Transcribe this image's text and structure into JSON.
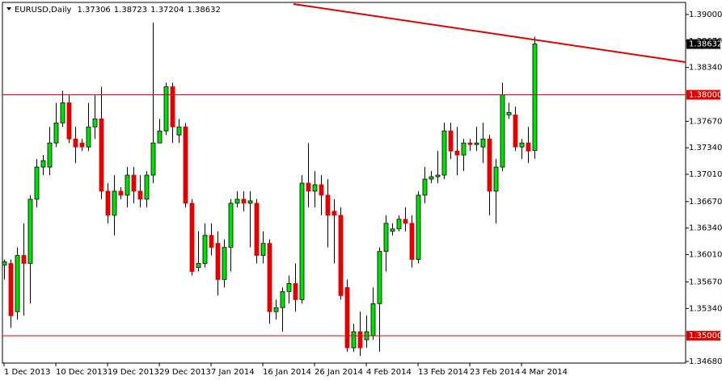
{
  "chart_data": {
    "type": "candlestick",
    "title": "EURUSD,Daily",
    "categories": [
      "1 Dec 2013",
      null,
      null,
      null,
      null,
      null,
      null,
      null,
      "10 Dec 2013",
      null,
      null,
      null,
      null,
      null,
      null,
      null,
      "19 Dec 2013",
      null,
      null,
      null,
      null,
      null,
      null,
      null,
      "29 Dec 2013",
      null,
      null,
      null,
      null,
      null,
      null,
      null,
      "7 Jan 2014",
      null,
      null,
      null,
      null,
      null,
      null,
      null,
      "16 Jan 2014",
      null,
      null,
      null,
      null,
      null,
      null,
      null,
      "26 Jan 2014",
      null,
      null,
      null,
      null,
      null,
      null,
      null,
      "4 Feb 2014",
      null,
      null,
      null,
      null,
      null,
      null,
      null,
      "13 Feb 2014",
      null,
      null,
      null,
      null,
      null,
      null,
      null,
      "23 Feb 2014",
      null,
      null,
      null,
      null,
      null,
      null,
      null,
      "4 Mar 2014",
      null,
      null
    ],
    "open": [
      1.3588,
      1.359,
      1.353,
      1.36,
      1.359,
      1.367,
      1.371,
      1.371,
      1.374,
      1.3765,
      1.379,
      1.3745,
      1.374,
      1.3735,
      1.376,
      1.377,
      1.368,
      1.365,
      1.368,
      1.3675,
      1.37,
      1.368,
      1.367,
      1.37,
      1.374,
      1.3755,
      1.381,
      1.375,
      1.376,
      1.3665,
      1.3585,
      1.359,
      1.3625,
      1.3615,
      1.357,
      1.361,
      1.3665,
      1.367,
      1.3665,
      1.3665,
      1.36,
      1.3615,
      1.353,
      1.3535,
      1.3555,
      1.3565,
      1.3545,
      1.369,
      1.368,
      1.3688,
      1.3675,
      1.3655,
      1.365,
      1.356,
      1.3485,
      1.3505,
      1.3495,
      1.35,
      1.354,
      1.3605,
      1.363,
      1.3633,
      1.3645,
      1.364,
      1.3595,
      1.3675,
      1.3695,
      1.3698,
      1.37,
      1.3755,
      1.373,
      1.3725,
      1.374,
      1.3738,
      1.3735,
      1.3745,
      1.368,
      1.371,
      1.3775,
      1.3775,
      1.3735,
      1.374,
      1.37306
    ],
    "high": [
      1.3595,
      1.3595,
      1.361,
      1.364,
      1.3675,
      1.372,
      1.3725,
      1.376,
      1.379,
      1.3805,
      1.38,
      1.376,
      1.3745,
      1.379,
      1.38,
      1.381,
      1.369,
      1.37,
      1.3685,
      1.371,
      1.371,
      1.37,
      1.3705,
      1.389,
      1.377,
      1.3815,
      1.3815,
      1.377,
      1.3765,
      1.367,
      1.363,
      1.364,
      1.364,
      1.363,
      1.362,
      1.367,
      1.368,
      1.368,
      1.368,
      1.367,
      1.363,
      1.362,
      1.3545,
      1.356,
      1.3575,
      1.359,
      1.37,
      1.374,
      1.3705,
      1.37,
      1.3695,
      1.367,
      1.366,
      1.357,
      1.3515,
      1.353,
      1.3525,
      1.356,
      1.361,
      1.365,
      1.364,
      1.365,
      1.366,
      1.365,
      1.368,
      1.371,
      1.3705,
      1.373,
      1.3765,
      1.3765,
      1.376,
      1.3745,
      1.3745,
      1.376,
      1.3765,
      1.375,
      1.372,
      1.3815,
      1.379,
      1.3785,
      1.3745,
      1.376,
      1.38723
    ],
    "low": [
      1.357,
      1.351,
      1.352,
      1.3525,
      1.354,
      1.366,
      1.37,
      1.37,
      1.3735,
      1.376,
      1.374,
      1.3715,
      1.373,
      1.373,
      1.3745,
      1.367,
      1.364,
      1.3625,
      1.367,
      1.366,
      1.3665,
      1.366,
      1.366,
      1.369,
      1.374,
      1.375,
      1.374,
      1.374,
      1.366,
      1.3575,
      1.358,
      1.3585,
      1.36,
      1.355,
      1.356,
      1.358,
      1.366,
      1.3655,
      1.361,
      1.359,
      1.359,
      1.3515,
      1.352,
      1.3505,
      1.354,
      1.353,
      1.354,
      1.366,
      1.366,
      1.365,
      1.361,
      1.359,
      1.3545,
      1.348,
      1.348,
      1.3475,
      1.3485,
      1.3495,
      1.348,
      1.358,
      1.3625,
      1.363,
      1.363,
      1.3585,
      1.359,
      1.3665,
      1.369,
      1.369,
      1.3695,
      1.372,
      1.37,
      1.3705,
      1.373,
      1.373,
      1.3715,
      1.365,
      1.364,
      1.3705,
      1.377,
      1.373,
      1.372,
      1.3715,
      1.37204
    ],
    "close": [
      1.3592,
      1.3525,
      1.36,
      1.359,
      1.367,
      1.371,
      1.3718,
      1.374,
      1.3765,
      1.379,
      1.3745,
      1.3735,
      1.3735,
      1.376,
      1.377,
      1.368,
      1.365,
      1.368,
      1.3675,
      1.37,
      1.368,
      1.367,
      1.37,
      1.374,
      1.3755,
      1.381,
      1.376,
      1.376,
      1.3665,
      1.358,
      1.359,
      1.3625,
      1.361,
      1.357,
      1.361,
      1.3665,
      1.367,
      1.3665,
      1.3668,
      1.36,
      1.3615,
      1.353,
      1.3535,
      1.3555,
      1.3565,
      1.3545,
      1.369,
      1.368,
      1.3688,
      1.3675,
      1.365,
      1.365,
      1.355,
      1.3485,
      1.3505,
      1.3485,
      1.3505,
      1.354,
      1.3605,
      1.364,
      1.3633,
      1.3645,
      1.364,
      1.3595,
      1.3675,
      1.3695,
      1.3698,
      1.37,
      1.3755,
      1.373,
      1.3725,
      1.374,
      1.3738,
      1.374,
      1.3745,
      1.368,
      1.371,
      1.38,
      1.3778,
      1.3735,
      1.374,
      1.373,
      1.38632
    ],
    "up_color": "#00e000",
    "down_color": "#e00000",
    "ylim": [
      1.3466,
      1.3915
    ],
    "yticks": [
      {
        "value": 1.39,
        "label": "1.39000"
      },
      {
        "value": 1.3867,
        "label": "1.38670"
      },
      {
        "value": 1.3834,
        "label": "1.38340"
      },
      {
        "value": 1.3767,
        "label": "1.37670"
      },
      {
        "value": 1.3734,
        "label": "1.37340"
      },
      {
        "value": 1.3701,
        "label": "1.37010"
      },
      {
        "value": 1.3667,
        "label": "1.36670"
      },
      {
        "value": 1.3634,
        "label": "1.36340"
      },
      {
        "value": 1.3601,
        "label": "1.36010"
      },
      {
        "value": 1.3567,
        "label": "1.35670"
      },
      {
        "value": 1.3534,
        "label": "1.35340"
      },
      {
        "value": 1.3468,
        "label": "1.34680"
      }
    ],
    "hlines": [
      {
        "value": 1.38,
        "label": "1.38000"
      },
      {
        "value": 1.35,
        "label": "1.35000"
      }
    ],
    "hline_color": "#e00000"
  }
}
